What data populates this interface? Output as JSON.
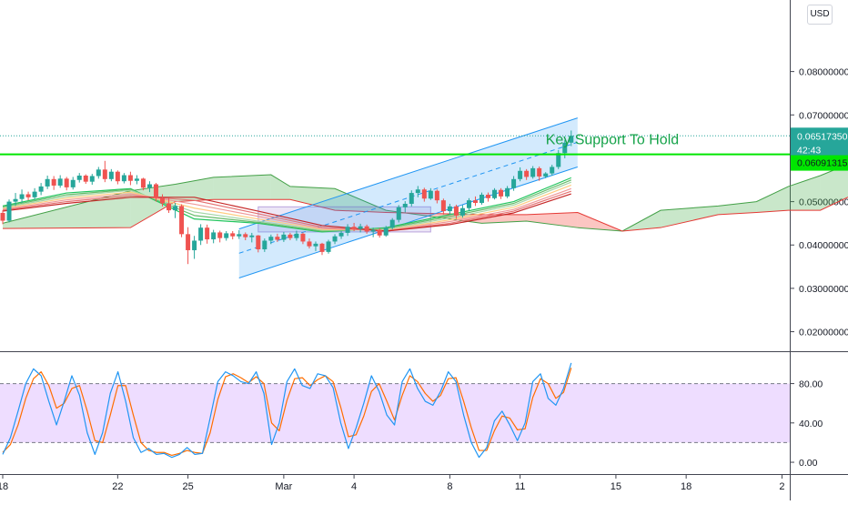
{
  "currency": "USD",
  "chart_data": {
    "type": "candlestick",
    "main_pane": {
      "price_axis_ticks": [
        "0.08000000",
        "0.07000000",
        "0.06000000",
        "0.05000000",
        "0.04000000",
        "0.03000000",
        "0.02000000"
      ],
      "ylim": [
        0.0155,
        0.0965
      ],
      "last_price": {
        "value": "0.06517350",
        "countdown": "42:43",
        "color": "#26a69a"
      },
      "support_level": {
        "value": "0.06091315",
        "color": "#00e600"
      },
      "annotation": "Key Support To Hold",
      "ohlc": [
        [
          0.0474,
          0.048,
          0.0448,
          0.0456
        ],
        [
          0.0456,
          0.0505,
          0.0452,
          0.05
        ],
        [
          0.05,
          0.052,
          0.049,
          0.0506
        ],
        [
          0.0506,
          0.0528,
          0.0497,
          0.0517
        ],
        [
          0.0517,
          0.0523,
          0.0503,
          0.051
        ],
        [
          0.051,
          0.0531,
          0.0505,
          0.0523
        ],
        [
          0.0523,
          0.0543,
          0.0515,
          0.0535
        ],
        [
          0.0535,
          0.056,
          0.0529,
          0.0552
        ],
        [
          0.0552,
          0.0559,
          0.0527,
          0.0537
        ],
        [
          0.0537,
          0.0561,
          0.0532,
          0.0553
        ],
        [
          0.0553,
          0.0557,
          0.0526,
          0.0533
        ],
        [
          0.0533,
          0.0557,
          0.0528,
          0.055
        ],
        [
          0.055,
          0.0566,
          0.0544,
          0.056
        ],
        [
          0.056,
          0.0563,
          0.0541,
          0.0546
        ],
        [
          0.0546,
          0.0564,
          0.0539,
          0.0559
        ],
        [
          0.0559,
          0.058,
          0.0553,
          0.0574
        ],
        [
          0.0574,
          0.0594,
          0.0545,
          0.0552
        ],
        [
          0.0552,
          0.0575,
          0.0547,
          0.0569
        ],
        [
          0.0569,
          0.0572,
          0.054,
          0.0547
        ],
        [
          0.0547,
          0.0566,
          0.0542,
          0.0561
        ],
        [
          0.0561,
          0.0569,
          0.0538,
          0.0548
        ],
        [
          0.0548,
          0.0561,
          0.054,
          0.0553
        ],
        [
          0.0553,
          0.0555,
          0.0526,
          0.0532
        ],
        [
          0.0532,
          0.0547,
          0.0522,
          0.054
        ],
        [
          0.054,
          0.0543,
          0.05,
          0.0508
        ],
        [
          0.0508,
          0.0517,
          0.0489,
          0.0496
        ],
        [
          0.0496,
          0.0509,
          0.0474,
          0.048
        ],
        [
          0.048,
          0.0497,
          0.0462,
          0.049
        ],
        [
          0.049,
          0.0494,
          0.0418,
          0.0425
        ],
        [
          0.0425,
          0.0441,
          0.0356,
          0.0388
        ],
        [
          0.0388,
          0.0421,
          0.0368,
          0.041
        ],
        [
          0.041,
          0.0448,
          0.04,
          0.044
        ],
        [
          0.044,
          0.0447,
          0.0403,
          0.0413
        ],
        [
          0.0413,
          0.0435,
          0.0404,
          0.0429
        ],
        [
          0.0429,
          0.0433,
          0.0406,
          0.0416
        ],
        [
          0.0416,
          0.0432,
          0.041,
          0.0427
        ],
        [
          0.0427,
          0.0432,
          0.0413,
          0.042
        ],
        [
          0.042,
          0.0434,
          0.0414,
          0.0425
        ],
        [
          0.0425,
          0.0429,
          0.0411,
          0.0418
        ],
        [
          0.0418,
          0.0428,
          0.0406,
          0.0422
        ],
        [
          0.0422,
          0.0423,
          0.0383,
          0.039
        ],
        [
          0.039,
          0.0415,
          0.0384,
          0.041
        ],
        [
          0.041,
          0.0424,
          0.0402,
          0.0419
        ],
        [
          0.0419,
          0.0426,
          0.0407,
          0.0412
        ],
        [
          0.0412,
          0.043,
          0.0407,
          0.0424
        ],
        [
          0.0424,
          0.0428,
          0.0411,
          0.0416
        ],
        [
          0.0416,
          0.0433,
          0.041,
          0.0426
        ],
        [
          0.0426,
          0.0429,
          0.0402,
          0.0408
        ],
        [
          0.0408,
          0.0415,
          0.0392,
          0.0397
        ],
        [
          0.0397,
          0.0408,
          0.0386,
          0.0403
        ],
        [
          0.0403,
          0.0405,
          0.0377,
          0.0384
        ],
        [
          0.0384,
          0.0412,
          0.038,
          0.0408
        ],
        [
          0.0408,
          0.0425,
          0.0402,
          0.042
        ],
        [
          0.042,
          0.0433,
          0.0414,
          0.0428
        ],
        [
          0.0428,
          0.0448,
          0.0421,
          0.0442
        ],
        [
          0.0442,
          0.0451,
          0.0432,
          0.0437
        ],
        [
          0.0437,
          0.0449,
          0.0429,
          0.0443
        ],
        [
          0.0443,
          0.0447,
          0.0426,
          0.0431
        ],
        [
          0.0431,
          0.044,
          0.0418,
          0.0435
        ],
        [
          0.0435,
          0.0439,
          0.0417,
          0.0422
        ],
        [
          0.0422,
          0.0444,
          0.0419,
          0.044
        ],
        [
          0.044,
          0.0462,
          0.0436,
          0.0458
        ],
        [
          0.0458,
          0.0492,
          0.0452,
          0.0487
        ],
        [
          0.0487,
          0.0501,
          0.0475,
          0.0495
        ],
        [
          0.0495,
          0.0526,
          0.0489,
          0.052
        ],
        [
          0.052,
          0.0536,
          0.051,
          0.0528
        ],
        [
          0.0528,
          0.0532,
          0.05,
          0.0507
        ],
        [
          0.0507,
          0.0531,
          0.0504,
          0.0525
        ],
        [
          0.0525,
          0.0528,
          0.0496,
          0.0503
        ],
        [
          0.0503,
          0.0507,
          0.047,
          0.0478
        ],
        [
          0.0478,
          0.0495,
          0.047,
          0.0489
        ],
        [
          0.0489,
          0.0493,
          0.046,
          0.0468
        ],
        [
          0.0468,
          0.0492,
          0.0463,
          0.0485
        ],
        [
          0.0485,
          0.0508,
          0.0478,
          0.0503
        ],
        [
          0.0503,
          0.0512,
          0.049,
          0.0497
        ],
        [
          0.0497,
          0.0521,
          0.0493,
          0.0516
        ],
        [
          0.0516,
          0.0521,
          0.05,
          0.0508
        ],
        [
          0.0508,
          0.0531,
          0.0505,
          0.0527
        ],
        [
          0.0527,
          0.0531,
          0.0506,
          0.0512
        ],
        [
          0.0512,
          0.0536,
          0.0508,
          0.0531
        ],
        [
          0.0531,
          0.0559,
          0.0525,
          0.0552
        ],
        [
          0.0552,
          0.0579,
          0.0547,
          0.0571
        ],
        [
          0.0571,
          0.0575,
          0.055,
          0.0557
        ],
        [
          0.0557,
          0.0582,
          0.0553,
          0.0577
        ],
        [
          0.0577,
          0.0581,
          0.0548,
          0.0558
        ],
        [
          0.0558,
          0.0568,
          0.0554,
          0.0565
        ],
        [
          0.0565,
          0.0585,
          0.056,
          0.058
        ],
        [
          0.058,
          0.0619,
          0.0575,
          0.0612
        ],
        [
          0.0612,
          0.0642,
          0.06,
          0.0636
        ],
        [
          0.0636,
          0.0664,
          0.0628,
          0.0652
        ]
      ],
      "ichimoku_cloud": {
        "span_a": [
          [
            0,
            0.045
          ],
          [
            20,
            0.0525
          ],
          [
            27,
            0.054
          ],
          [
            33,
            0.0556
          ],
          [
            42,
            0.0562
          ],
          [
            45,
            0.0535
          ],
          [
            52,
            0.053
          ],
          [
            60,
            0.048
          ],
          [
            75,
            0.045
          ],
          [
            82,
            0.0455
          ],
          [
            90,
            0.044
          ],
          [
            97,
            0.0432
          ],
          [
            103,
            0.048
          ],
          [
            112,
            0.049
          ],
          [
            118,
            0.05
          ],
          [
            123,
            0.0535
          ],
          [
            128,
            0.056
          ],
          [
            133,
            0.059
          ]
        ],
        "span_b": [
          [
            0,
            0.0438
          ],
          [
            20,
            0.044
          ],
          [
            27,
            0.05
          ],
          [
            33,
            0.0505
          ],
          [
            42,
            0.0505
          ],
          [
            45,
            0.0505
          ],
          [
            52,
            0.048
          ],
          [
            60,
            0.0475
          ],
          [
            75,
            0.047
          ],
          [
            82,
            0.047
          ],
          [
            90,
            0.0475
          ],
          [
            97,
            0.0432
          ],
          [
            103,
            0.044
          ],
          [
            112,
            0.047
          ],
          [
            118,
            0.0475
          ],
          [
            123,
            0.048
          ],
          [
            128,
            0.048
          ],
          [
            133,
            0.0515
          ]
        ]
      },
      "ema_ribbon": [
        {
          "color": "#22c55e",
          "values": [
            [
              0,
              0.049
            ],
            [
              10,
              0.052
            ],
            [
              20,
              0.053
            ],
            [
              30,
              0.046
            ],
            [
              40,
              0.045
            ],
            [
              50,
              0.043
            ],
            [
              60,
              0.044
            ],
            [
              70,
              0.047
            ],
            [
              80,
              0.05
            ],
            [
              89,
              0.0555
            ]
          ]
        },
        {
          "color": "#66bb6a",
          "values": [
            [
              0,
              0.0488
            ],
            [
              10,
              0.0516
            ],
            [
              20,
              0.0528
            ],
            [
              30,
              0.0468
            ],
            [
              40,
              0.0452
            ],
            [
              50,
              0.0432
            ],
            [
              60,
              0.0438
            ],
            [
              70,
              0.0466
            ],
            [
              80,
              0.0496
            ],
            [
              89,
              0.055
            ]
          ]
        },
        {
          "color": "#a5d6a7",
          "values": [
            [
              0,
              0.0486
            ],
            [
              10,
              0.0512
            ],
            [
              20,
              0.0526
            ],
            [
              30,
              0.0476
            ],
            [
              40,
              0.0455
            ],
            [
              50,
              0.0434
            ],
            [
              60,
              0.0436
            ],
            [
              70,
              0.0462
            ],
            [
              80,
              0.0492
            ],
            [
              89,
              0.0545
            ]
          ]
        },
        {
          "color": "#ffcc80",
          "values": [
            [
              0,
              0.0484
            ],
            [
              10,
              0.0508
            ],
            [
              20,
              0.0522
            ],
            [
              30,
              0.0485
            ],
            [
              40,
              0.046
            ],
            [
              50,
              0.0436
            ],
            [
              60,
              0.0434
            ],
            [
              70,
              0.0458
            ],
            [
              80,
              0.0487
            ],
            [
              89,
              0.0538
            ]
          ]
        },
        {
          "color": "#ef9a9a",
          "values": [
            [
              0,
              0.0482
            ],
            [
              10,
              0.0504
            ],
            [
              20,
              0.0518
            ],
            [
              30,
              0.0494
            ],
            [
              40,
              0.0466
            ],
            [
              50,
              0.0438
            ],
            [
              60,
              0.0433
            ],
            [
              70,
              0.0454
            ],
            [
              80,
              0.0482
            ],
            [
              89,
              0.053
            ]
          ]
        },
        {
          "color": "#e57373",
          "values": [
            [
              0,
              0.048
            ],
            [
              10,
              0.05
            ],
            [
              20,
              0.0514
            ],
            [
              30,
              0.0503
            ],
            [
              40,
              0.0472
            ],
            [
              50,
              0.0441
            ],
            [
              60,
              0.0432
            ],
            [
              70,
              0.045
            ],
            [
              80,
              0.0478
            ],
            [
              89,
              0.0524
            ]
          ]
        },
        {
          "color": "#c62828",
          "values": [
            [
              0,
              0.0478
            ],
            [
              10,
              0.0496
            ],
            [
              20,
              0.051
            ],
            [
              30,
              0.051
            ],
            [
              40,
              0.0478
            ],
            [
              50,
              0.0445
            ],
            [
              60,
              0.0432
            ],
            [
              70,
              0.0447
            ],
            [
              80,
              0.0474
            ],
            [
              89,
              0.0518
            ]
          ]
        }
      ],
      "channel": {
        "upper": [
          [
            37,
            0.0437
          ],
          [
            90,
            0.0693
          ]
        ],
        "lower": [
          [
            37,
            0.0324
          ],
          [
            90,
            0.058
          ]
        ],
        "mid": [
          [
            37,
            0.0381
          ],
          [
            90,
            0.0637
          ]
        ]
      },
      "rectangle": {
        "x": [
          40,
          67
        ],
        "y": [
          0.043,
          0.0488
        ]
      }
    },
    "stoch_pane": {
      "axis_ticks": [
        "80.00",
        "40.00",
        "0.00"
      ],
      "ylim": [
        -12,
        112
      ],
      "band": [
        20,
        80
      ],
      "k": [
        8,
        25,
        52,
        80,
        95,
        88,
        62,
        38,
        62,
        88,
        68,
        30,
        8,
        30,
        70,
        92,
        62,
        25,
        10,
        14,
        8,
        9,
        5,
        8,
        15,
        8,
        9,
        45,
        82,
        92,
        88,
        82,
        80,
        92,
        70,
        18,
        40,
        82,
        95,
        78,
        75,
        90,
        88,
        76,
        40,
        14,
        35,
        60,
        88,
        72,
        48,
        38,
        82,
        95,
        75,
        62,
        58,
        72,
        92,
        82,
        48,
        20,
        5,
        15,
        42,
        52,
        38,
        22,
        40,
        82,
        90,
        65,
        58,
        75,
        101
      ],
      "d": [
        10,
        18,
        38,
        65,
        85,
        92,
        78,
        55,
        60,
        75,
        78,
        52,
        22,
        20,
        48,
        78,
        78,
        48,
        20,
        12,
        10,
        10,
        7,
        9,
        12,
        10,
        9,
        30,
        64,
        87,
        90,
        86,
        81,
        87,
        80,
        40,
        32,
        63,
        85,
        86,
        78,
        84,
        88,
        82,
        56,
        26,
        28,
        47,
        72,
        80,
        62,
        43,
        68,
        88,
        82,
        70,
        62,
        68,
        85,
        86,
        62,
        35,
        12,
        12,
        32,
        47,
        45,
        33,
        34,
        66,
        85,
        80,
        65,
        71,
        96
      ]
    },
    "time_axis": [
      {
        "label": "18",
        "bar": 0
      },
      {
        "label": "22",
        "bar": 18
      },
      {
        "label": "25",
        "bar": 29
      },
      {
        "label": "Mar",
        "bar": 44
      },
      {
        "label": "4",
        "bar": 55
      },
      {
        "label": "8",
        "bar": 70
      },
      {
        "label": "11",
        "bar": 81
      },
      {
        "label": "15",
        "bar": 96
      },
      {
        "label": "18",
        "bar": 107
      },
      {
        "label": "2",
        "bar": 122
      }
    ]
  }
}
